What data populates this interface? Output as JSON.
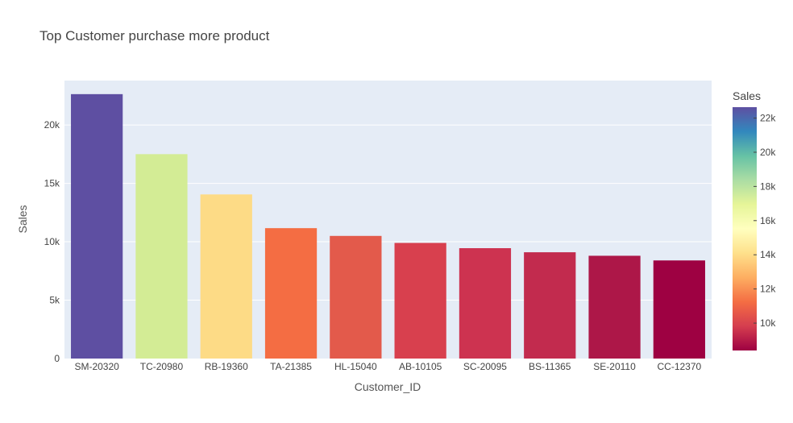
{
  "chart_data": {
    "type": "bar",
    "title": "Top Customer purchase more product",
    "xlabel": "Customer_ID",
    "ylabel": "Sales",
    "categories": [
      "SM-20320",
      "TC-20980",
      "RB-19360",
      "TA-21385",
      "HL-15040",
      "AB-10105",
      "SC-20095",
      "BS-11365",
      "SE-20110",
      "CC-12370"
    ],
    "values": [
      22638,
      17500,
      14052,
      11164,
      10500,
      9900,
      9450,
      9100,
      8800,
      8400
    ],
    "colors": [
      "#5e4fa2",
      "#d3ec95",
      "#fddb86",
      "#f46d43",
      "#e35a4b",
      "#d8404e",
      "#cd3350",
      "#c22b4e",
      "#ad1748",
      "#9e0142"
    ],
    "ylim": [
      0,
      23800
    ],
    "yticks": [
      {
        "value": 0,
        "label": "0"
      },
      {
        "value": 5000,
        "label": "5k"
      },
      {
        "value": 10000,
        "label": "10k"
      },
      {
        "value": 15000,
        "label": "15k"
      },
      {
        "value": 20000,
        "label": "20k"
      }
    ],
    "grid": true,
    "colorbar": {
      "title": "Sales",
      "range": [
        8400,
        22638
      ],
      "ticks": [
        {
          "value": 10000,
          "label": "10k"
        },
        {
          "value": 12000,
          "label": "12k"
        },
        {
          "value": 14000,
          "label": "14k"
        },
        {
          "value": 16000,
          "label": "16k"
        },
        {
          "value": 18000,
          "label": "18k"
        },
        {
          "value": 20000,
          "label": "20k"
        },
        {
          "value": 22000,
          "label": "22k"
        }
      ],
      "colorscale": [
        "#9e0142",
        "#d53e4f",
        "#f46d43",
        "#fdae61",
        "#fee08b",
        "#ffffbf",
        "#e6f598",
        "#abdda4",
        "#66c2a5",
        "#3288bd",
        "#5e4fa2"
      ]
    }
  }
}
